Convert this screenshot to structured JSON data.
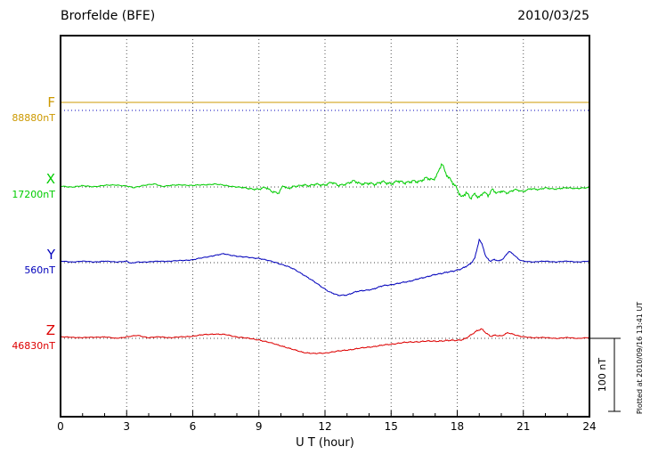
{
  "header": {
    "title": "Brorfelde (BFE)",
    "date": "2010/03/25"
  },
  "axis": {
    "xlabel": "U T (hour)",
    "xticks": [
      "0",
      "3",
      "6",
      "9",
      "12",
      "15",
      "18",
      "21",
      "24"
    ]
  },
  "scalebar": {
    "label": "100 nT"
  },
  "footer_note": "Plotted at 2010/09/16 13:41 UT",
  "chart_data": {
    "type": "line",
    "title": "Brorfelde (BFE) magnetogram 2010/03/25",
    "xlabel": "U T (hour)",
    "x_range_hours": [
      0,
      24
    ],
    "x_major_ticks": [
      0,
      3,
      6,
      9,
      12,
      15,
      18,
      21,
      24
    ],
    "grid": "dotted vertical at 3h intervals, dotted horizontal baseline per component",
    "scale_bar_nT": 100,
    "series": [
      {
        "name": "F",
        "baseline_label": "88880nT",
        "baseline_nT": 88880,
        "color": "#cc9900",
        "baseline_color": "#0000bb",
        "offset_points_nT": [
          [
            0,
            11
          ],
          [
            24,
            11
          ]
        ],
        "noise_amp_nT": [
          [
            0,
            0
          ],
          [
            24,
            0
          ]
        ]
      },
      {
        "name": "X",
        "baseline_label": "17200nT",
        "baseline_nT": 17200,
        "color": "#00cc00",
        "baseline_color": "#444444",
        "offset_points_nT": [
          [
            0,
            1
          ],
          [
            0.5,
            0
          ],
          [
            1,
            1.5
          ],
          [
            1.5,
            0.5
          ],
          [
            2,
            2
          ],
          [
            2.5,
            3
          ],
          [
            3,
            1
          ],
          [
            3.3,
            -1
          ],
          [
            3.7,
            2
          ],
          [
            4,
            3
          ],
          [
            4.3,
            4
          ],
          [
            4.6,
            1
          ],
          [
            5,
            2
          ],
          [
            5.5,
            3
          ],
          [
            6,
            2
          ],
          [
            6.5,
            3
          ],
          [
            7,
            4
          ],
          [
            7.5,
            2
          ],
          [
            8,
            0
          ],
          [
            8.5,
            -2
          ],
          [
            9,
            -3
          ],
          [
            9.3,
            -1
          ],
          [
            9.6,
            -6
          ],
          [
            9.9,
            -8
          ],
          [
            10.1,
            2
          ],
          [
            10.3,
            -3
          ],
          [
            10.6,
            1
          ],
          [
            11,
            3
          ],
          [
            11.3,
            1
          ],
          [
            11.6,
            4
          ],
          [
            12,
            3
          ],
          [
            12.3,
            6
          ],
          [
            12.6,
            2
          ],
          [
            13,
            5
          ],
          [
            13.3,
            8
          ],
          [
            13.6,
            4
          ],
          [
            14,
            6
          ],
          [
            14.3,
            3
          ],
          [
            14.6,
            7
          ],
          [
            15,
            5
          ],
          [
            15.3,
            8
          ],
          [
            15.6,
            5
          ],
          [
            16,
            9
          ],
          [
            16.3,
            7
          ],
          [
            16.6,
            12
          ],
          [
            16.9,
            10
          ],
          [
            17.1,
            18
          ],
          [
            17.3,
            33
          ],
          [
            17.45,
            20
          ],
          [
            17.6,
            12
          ],
          [
            17.8,
            6
          ],
          [
            18,
            -2
          ],
          [
            18.2,
            -14
          ],
          [
            18.4,
            -8
          ],
          [
            18.6,
            -16
          ],
          [
            18.8,
            -10
          ],
          [
            19,
            -14
          ],
          [
            19.2,
            -6
          ],
          [
            19.4,
            -12
          ],
          [
            19.6,
            -4
          ],
          [
            19.8,
            -9
          ],
          [
            20,
            -5
          ],
          [
            20.3,
            -8
          ],
          [
            20.6,
            -4
          ],
          [
            21,
            -6
          ],
          [
            21.3,
            -2
          ],
          [
            21.7,
            -4
          ],
          [
            22,
            -1
          ],
          [
            22.5,
            -3
          ],
          [
            23,
            -1
          ],
          [
            23.5,
            -2
          ],
          [
            24,
            -1
          ]
        ],
        "noise_amp_nT": [
          [
            0,
            1
          ],
          [
            8,
            1
          ],
          [
            9,
            2
          ],
          [
            13,
            2.5
          ],
          [
            15,
            3
          ],
          [
            16.5,
            3
          ],
          [
            18,
            4
          ],
          [
            20,
            2.5
          ],
          [
            21,
            1.5
          ],
          [
            24,
            1
          ]
        ]
      },
      {
        "name": "Y",
        "baseline_label": "560nT",
        "baseline_nT": 560,
        "color": "#0000bb",
        "baseline_color": "#444444",
        "offset_points_nT": [
          [
            0,
            2
          ],
          [
            0.5,
            1
          ],
          [
            1,
            2
          ],
          [
            1.5,
            1
          ],
          [
            2,
            2
          ],
          [
            2.5,
            1
          ],
          [
            3,
            2
          ],
          [
            3.2,
            -1
          ],
          [
            3.5,
            1
          ],
          [
            4,
            1
          ],
          [
            4.5,
            2
          ],
          [
            5,
            2
          ],
          [
            5.5,
            3
          ],
          [
            6,
            4
          ],
          [
            6.5,
            7
          ],
          [
            7,
            10
          ],
          [
            7.4,
            12
          ],
          [
            7.8,
            10
          ],
          [
            8.2,
            8
          ],
          [
            8.6,
            7
          ],
          [
            9,
            6
          ],
          [
            9.4,
            3
          ],
          [
            9.8,
            0
          ],
          [
            10.2,
            -4
          ],
          [
            10.6,
            -9
          ],
          [
            11,
            -16
          ],
          [
            11.4,
            -24
          ],
          [
            11.8,
            -32
          ],
          [
            12.2,
            -40
          ],
          [
            12.6,
            -45
          ],
          [
            13,
            -44
          ],
          [
            13.4,
            -40
          ],
          [
            13.8,
            -38
          ],
          [
            14.2,
            -36
          ],
          [
            14.6,
            -32
          ],
          [
            15,
            -30
          ],
          [
            15.4,
            -28
          ],
          [
            15.8,
            -26
          ],
          [
            16.2,
            -22
          ],
          [
            16.6,
            -20
          ],
          [
            17,
            -16
          ],
          [
            17.4,
            -14
          ],
          [
            17.8,
            -12
          ],
          [
            18.2,
            -8
          ],
          [
            18.6,
            -2
          ],
          [
            18.8,
            6
          ],
          [
            19,
            32
          ],
          [
            19.15,
            24
          ],
          [
            19.3,
            8
          ],
          [
            19.5,
            2
          ],
          [
            19.7,
            4
          ],
          [
            19.9,
            2
          ],
          [
            20.1,
            6
          ],
          [
            20.35,
            16
          ],
          [
            20.6,
            10
          ],
          [
            20.8,
            4
          ],
          [
            21,
            2
          ],
          [
            21.5,
            1
          ],
          [
            22,
            2
          ],
          [
            22.5,
            1
          ],
          [
            23,
            2
          ],
          [
            23.5,
            1
          ],
          [
            24,
            2
          ]
        ],
        "noise_amp_nT": [
          [
            0,
            0.7
          ],
          [
            10,
            1
          ],
          [
            17,
            1.2
          ],
          [
            19,
            1.5
          ],
          [
            21,
            0.7
          ],
          [
            24,
            0.7
          ]
        ]
      },
      {
        "name": "Z",
        "baseline_label": "46830nT",
        "baseline_nT": 46830,
        "color": "#dd0000",
        "baseline_color": "#444444",
        "offset_points_nT": [
          [
            0,
            2
          ],
          [
            1,
            1
          ],
          [
            2,
            2
          ],
          [
            2.5,
            0
          ],
          [
            3,
            2
          ],
          [
            3.5,
            4
          ],
          [
            4,
            1
          ],
          [
            4.5,
            2
          ],
          [
            5,
            1
          ],
          [
            5.5,
            2
          ],
          [
            6,
            3
          ],
          [
            6.5,
            5
          ],
          [
            7,
            6
          ],
          [
            7.5,
            5
          ],
          [
            8,
            2
          ],
          [
            8.5,
            0
          ],
          [
            9,
            -2
          ],
          [
            9.5,
            -6
          ],
          [
            10,
            -10
          ],
          [
            10.5,
            -15
          ],
          [
            11,
            -19
          ],
          [
            11.5,
            -21
          ],
          [
            12,
            -20
          ],
          [
            12.5,
            -18
          ],
          [
            13,
            -16
          ],
          [
            13.5,
            -14
          ],
          [
            14,
            -12
          ],
          [
            14.5,
            -10
          ],
          [
            15,
            -8
          ],
          [
            15.5,
            -6
          ],
          [
            16,
            -5
          ],
          [
            16.5,
            -4
          ],
          [
            17,
            -4
          ],
          [
            17.5,
            -3
          ],
          [
            18,
            -3
          ],
          [
            18.3,
            -1
          ],
          [
            18.6,
            4
          ],
          [
            18.9,
            10
          ],
          [
            19.1,
            13
          ],
          [
            19.3,
            8
          ],
          [
            19.5,
            3
          ],
          [
            19.7,
            4
          ],
          [
            20,
            3
          ],
          [
            20.3,
            8
          ],
          [
            20.5,
            6
          ],
          [
            20.8,
            3
          ],
          [
            21,
            2
          ],
          [
            21.5,
            1
          ],
          [
            22,
            1
          ],
          [
            22.5,
            0
          ],
          [
            23,
            1
          ],
          [
            23.5,
            0
          ],
          [
            24,
            1
          ]
        ],
        "noise_amp_nT": [
          [
            0,
            0.6
          ],
          [
            9,
            1
          ],
          [
            15,
            1
          ],
          [
            19,
            1.5
          ],
          [
            21,
            0.8
          ],
          [
            24,
            0.6
          ]
        ]
      }
    ]
  }
}
